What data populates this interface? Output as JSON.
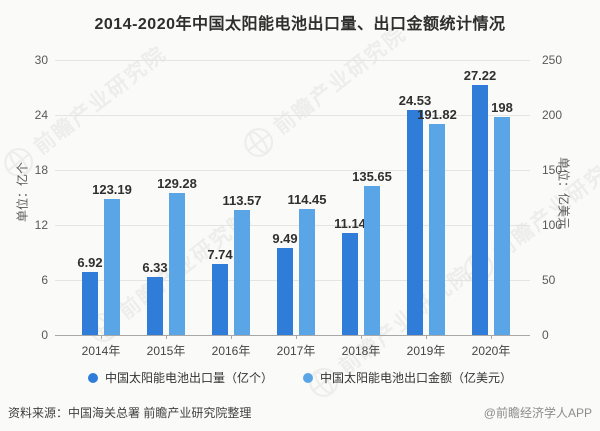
{
  "title": "2014-2020年中国太阳能电池出口量、出口金额统计情况",
  "chart_data": {
    "type": "bar",
    "categories": [
      "2014年",
      "2015年",
      "2016年",
      "2017年",
      "2018年",
      "2019年",
      "2020年"
    ],
    "series": [
      {
        "name": "中国太阳能电池出口量（亿个）",
        "axis": "left",
        "color": "#2f7dd8",
        "values": [
          6.92,
          6.33,
          7.74,
          9.49,
          11.14,
          24.53,
          27.22
        ]
      },
      {
        "name": "中国太阳能电池出口金额（亿美元）",
        "axis": "right",
        "color": "#5aa5e6",
        "values": [
          123.19,
          129.28,
          113.57,
          114.45,
          135.65,
          191.82,
          198
        ]
      }
    ],
    "left_axis": {
      "unit": "单位：亿个",
      "ticks": [
        0,
        6,
        12,
        18,
        24,
        30
      ],
      "max": 30
    },
    "right_axis": {
      "unit": "单位：亿美元",
      "ticks": [
        0,
        50,
        100,
        150,
        200,
        250
      ],
      "max": 250
    },
    "grid": true,
    "legend_position": "bottom"
  },
  "watermark": {
    "text": "前瞻产业研究院"
  },
  "footer": {
    "source": "资料来源：中国海关总署 前瞻产业研究院整理",
    "brand": "@前瞻经济学人APP"
  },
  "colors": {
    "series1": "#2f7dd8",
    "series2": "#5aa5e6",
    "grid": "#e4e4e2",
    "axis_line": "#a8a8a8",
    "label_text": "#303030"
  }
}
